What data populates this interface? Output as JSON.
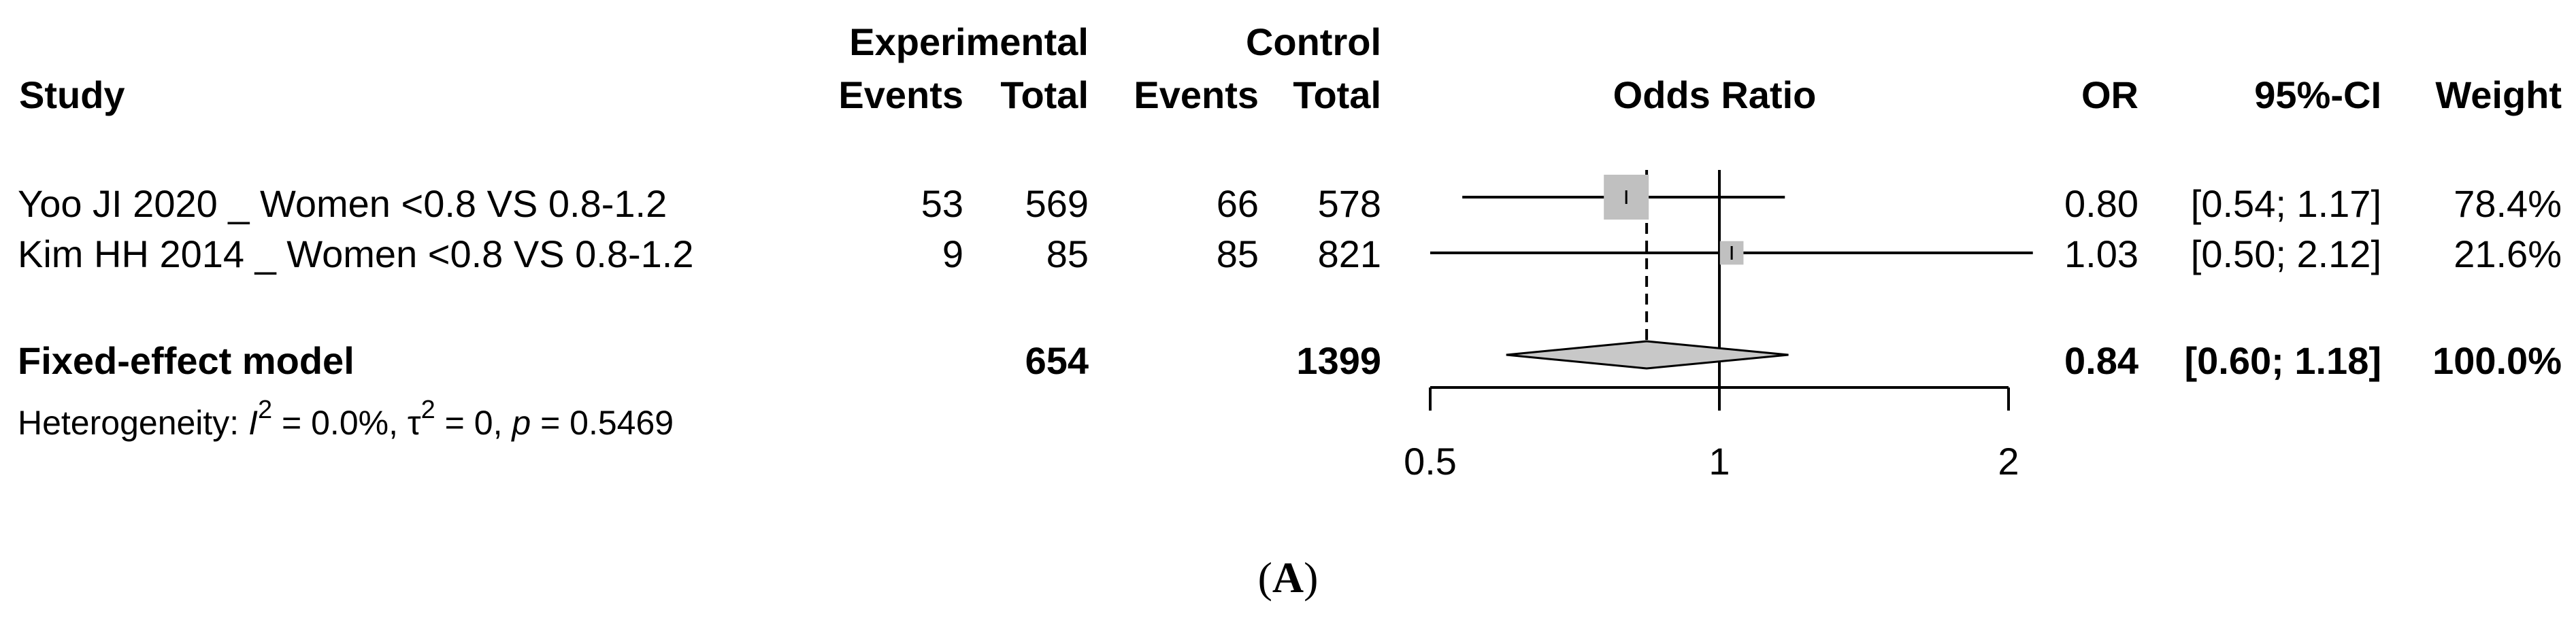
{
  "headers": {
    "study": "Study",
    "experimental": "Experimental",
    "control": "Control",
    "events": "Events",
    "total": "Total",
    "odds_ratio": "Odds Ratio",
    "or": "OR",
    "ci": "95%-CI",
    "weight": "Weight"
  },
  "fixed": {
    "label": "Fixed-effect model",
    "exp_total": "654",
    "ctrl_total": "1399",
    "or": "0.84",
    "ci": "[0.60; 1.18]",
    "weight": "100.0%"
  },
  "heterogeneity": {
    "prefix": "Heterogeneity: ",
    "i_letter": "I",
    "i_exp": "2",
    "i_val": " = 0.0%, ",
    "tau_letter": "τ",
    "tau_exp": "2",
    "tau_val": " = 0, ",
    "p_letter": "p",
    "p_val": " = 0.5469"
  },
  "caption": {
    "open": "(",
    "letter": "A",
    "close": ")"
  },
  "colors": {
    "box": "#c0c0c0",
    "diamond": "#c8c8c8",
    "line": "#000000"
  },
  "chart_data": {
    "type": "forest",
    "measure": "Odds Ratio",
    "scale": "log",
    "xlim": [
      0.5,
      2
    ],
    "ticks": [
      "0.5",
      "1",
      "2"
    ],
    "null_value": 1,
    "studies": [
      {
        "name": "Yoo JI  2020 _ Women <0.8 VS 0.8-1.2",
        "exp_events": "53",
        "exp_total": "569",
        "ctrl_events": "66",
        "ctrl_total": "578",
        "or": 0.8,
        "lower": 0.54,
        "upper": 1.17,
        "or_text": "0.80",
        "ci_text": "[0.54; 1.17]",
        "weight_text": "78.4%",
        "weight": 78.4
      },
      {
        "name": "Kim HH  2014 _ Women <0.8 VS 0.8-1.2",
        "exp_events": "9",
        "exp_total": "85",
        "ctrl_events": "85",
        "ctrl_total": "821",
        "or": 1.03,
        "lower": 0.5,
        "upper": 2.12,
        "or_text": "1.03",
        "ci_text": "[0.50; 2.12]",
        "weight_text": "21.6%",
        "weight": 21.6
      }
    ],
    "pooled": {
      "or": 0.84,
      "lower": 0.6,
      "upper": 1.18
    }
  }
}
